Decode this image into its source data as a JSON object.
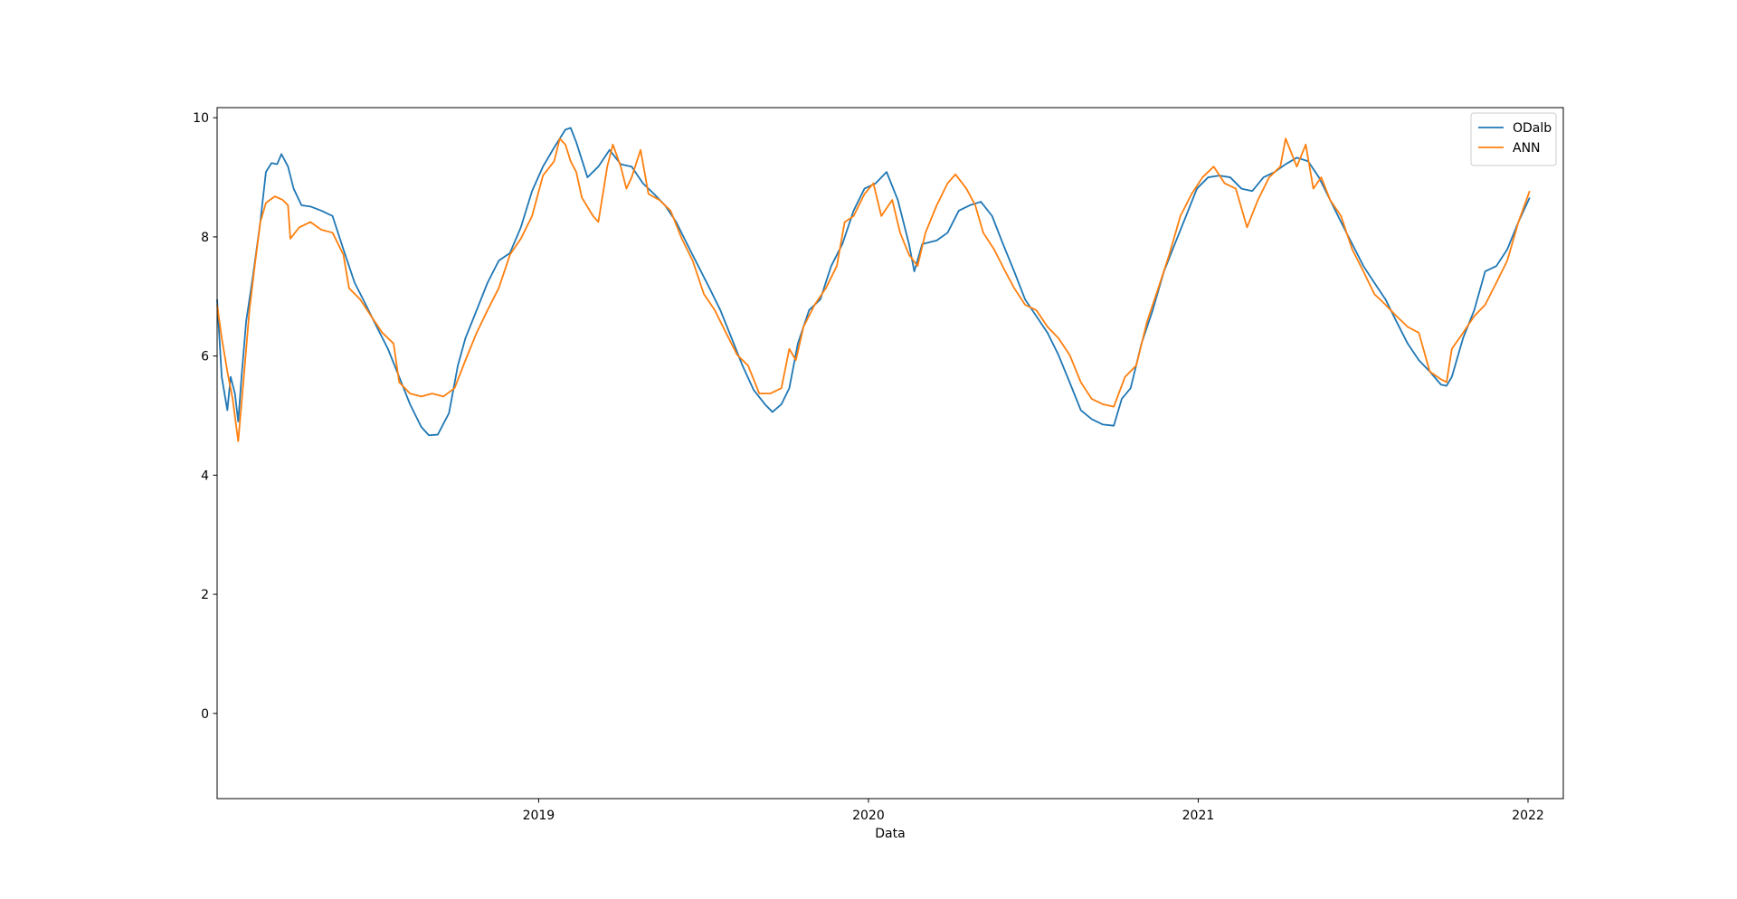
{
  "chart_data": {
    "type": "line",
    "xlabel": "Data",
    "xlim": [
      2018.025,
      2022.107
    ],
    "xticks": [
      2019,
      2020,
      2021,
      2022
    ],
    "ylim": [
      -1.43,
      10.17
    ],
    "yticks": [
      0,
      2,
      4,
      6,
      8,
      10
    ],
    "grid": false,
    "legend": "upper right",
    "series": [
      {
        "name": "ODalb",
        "color": "#1f77b4",
        "x": [
          2018.025,
          2018.039,
          2018.056,
          2018.066,
          2018.079,
          2018.089,
          2018.099,
          2018.113,
          2018.133,
          2018.156,
          2018.173,
          2018.19,
          2018.207,
          2018.22,
          2018.24,
          2018.257,
          2018.281,
          2018.308,
          2018.341,
          2018.375,
          2018.408,
          2018.442,
          2018.476,
          2018.509,
          2018.543,
          2018.577,
          2018.61,
          2018.644,
          2018.667,
          2018.694,
          2018.728,
          2018.755,
          2018.778,
          2018.812,
          2018.845,
          2018.879,
          2018.913,
          2018.946,
          2018.98,
          2019.013,
          2019.047,
          2019.081,
          2019.097,
          2019.114,
          2019.148,
          2019.181,
          2019.215,
          2019.249,
          2019.282,
          2019.316,
          2019.35,
          2019.383,
          2019.417,
          2019.45,
          2019.484,
          2019.518,
          2019.551,
          2019.585,
          2019.618,
          2019.652,
          2019.686,
          2019.709,
          2019.736,
          2019.76,
          2019.786,
          2019.82,
          2019.854,
          2019.887,
          2019.921,
          2019.955,
          2019.988,
          2020.022,
          2020.055,
          2020.089,
          2020.123,
          2020.139,
          2020.163,
          2020.207,
          2020.24,
          2020.274,
          2020.307,
          2020.341,
          2020.375,
          2020.408,
          2020.442,
          2020.475,
          2020.509,
          2020.543,
          2020.576,
          2020.61,
          2020.644,
          2020.677,
          2020.711,
          2020.744,
          2020.768,
          2020.795,
          2020.828,
          2020.862,
          2020.896,
          2020.929,
          2020.963,
          2020.996,
          2021.03,
          2021.064,
          2021.097,
          2021.131,
          2021.164,
          2021.198,
          2021.232,
          2021.265,
          2021.299,
          2021.333,
          2021.366,
          2021.4,
          2021.433,
          2021.467,
          2021.501,
          2021.534,
          2021.568,
          2021.601,
          2021.635,
          2021.669,
          2021.702,
          2021.736,
          2021.753,
          2021.769,
          2021.803,
          2021.837,
          2021.87,
          2021.904,
          2021.937,
          2021.971,
          2022.005
        ],
        "values": [
          6.95,
          5.65,
          5.09,
          5.65,
          5.37,
          4.9,
          5.65,
          6.58,
          7.32,
          8.25,
          9.09,
          9.24,
          9.22,
          9.39,
          9.18,
          8.81,
          8.53,
          8.51,
          8.44,
          8.35,
          7.79,
          7.23,
          6.86,
          6.49,
          6.12,
          5.65,
          5.19,
          4.81,
          4.67,
          4.68,
          5.04,
          5.84,
          6.3,
          6.77,
          7.23,
          7.6,
          7.73,
          8.16,
          8.77,
          9.18,
          9.5,
          9.8,
          9.83,
          9.59,
          9.0,
          9.18,
          9.46,
          9.22,
          9.18,
          8.9,
          8.72,
          8.53,
          8.25,
          7.88,
          7.51,
          7.14,
          6.77,
          6.3,
          5.84,
          5.43,
          5.19,
          5.06,
          5.19,
          5.46,
          6.21,
          6.77,
          6.95,
          7.51,
          7.88,
          8.44,
          8.81,
          8.9,
          9.09,
          8.62,
          7.88,
          7.42,
          7.88,
          7.94,
          8.07,
          8.44,
          8.53,
          8.59,
          8.35,
          7.88,
          7.42,
          6.95,
          6.67,
          6.39,
          6.02,
          5.56,
          5.09,
          4.94,
          4.85,
          4.83,
          5.28,
          5.46,
          6.21,
          6.77,
          7.42,
          7.88,
          8.35,
          8.81,
          9.0,
          9.03,
          9.0,
          8.81,
          8.77,
          9.0,
          9.09,
          9.22,
          9.33,
          9.27,
          9.0,
          8.62,
          8.25,
          7.88,
          7.51,
          7.23,
          6.95,
          6.58,
          6.21,
          5.93,
          5.74,
          5.52,
          5.5,
          5.65,
          6.3,
          6.77,
          7.42,
          7.51,
          7.79,
          8.25,
          8.66
        ]
      },
      {
        "name": "ANN",
        "color": "#ff7f0e",
        "x": [
          2018.025,
          2018.039,
          2018.056,
          2018.072,
          2018.089,
          2018.106,
          2018.123,
          2018.139,
          2018.156,
          2018.173,
          2018.2,
          2018.224,
          2018.24,
          2018.247,
          2018.274,
          2018.308,
          2018.341,
          2018.375,
          2018.408,
          2018.425,
          2018.459,
          2018.492,
          2018.526,
          2018.56,
          2018.577,
          2018.61,
          2018.644,
          2018.677,
          2018.711,
          2018.745,
          2018.778,
          2018.812,
          2018.845,
          2018.879,
          2018.913,
          2018.946,
          2018.98,
          2019.013,
          2019.047,
          2019.064,
          2019.081,
          2019.097,
          2019.114,
          2019.131,
          2019.165,
          2019.181,
          2019.208,
          2019.225,
          2019.249,
          2019.266,
          2019.282,
          2019.309,
          2019.333,
          2019.366,
          2019.4,
          2019.434,
          2019.467,
          2019.501,
          2019.534,
          2019.568,
          2019.602,
          2019.635,
          2019.669,
          2019.702,
          2019.736,
          2019.76,
          2019.78,
          2019.803,
          2019.837,
          2019.871,
          2019.904,
          2019.928,
          2019.955,
          2019.988,
          2020.015,
          2020.039,
          2020.072,
          2020.096,
          2020.123,
          2020.149,
          2020.173,
          2020.207,
          2020.24,
          2020.264,
          2020.297,
          2020.324,
          2020.348,
          2020.381,
          2020.415,
          2020.442,
          2020.475,
          2020.509,
          2020.543,
          2020.576,
          2020.61,
          2020.644,
          2020.677,
          2020.711,
          2020.744,
          2020.778,
          2020.812,
          2020.845,
          2020.879,
          2020.912,
          2020.946,
          2020.98,
          2021.013,
          2021.047,
          2021.08,
          2021.114,
          2021.148,
          2021.181,
          2021.215,
          2021.249,
          2021.265,
          2021.299,
          2021.326,
          2021.349,
          2021.373,
          2021.4,
          2021.433,
          2021.467,
          2021.501,
          2021.534,
          2021.568,
          2021.601,
          2021.635,
          2021.669,
          2021.702,
          2021.736,
          2021.753,
          2021.769,
          2021.803,
          2021.837,
          2021.87,
          2021.904,
          2021.937,
          2021.971,
          2022.005
        ],
        "values": [
          6.86,
          6.3,
          5.74,
          5.28,
          4.57,
          5.65,
          6.77,
          7.51,
          8.25,
          8.57,
          8.68,
          8.62,
          8.53,
          7.97,
          8.16,
          8.25,
          8.12,
          8.07,
          7.7,
          7.14,
          6.95,
          6.67,
          6.39,
          6.21,
          5.56,
          5.37,
          5.32,
          5.37,
          5.32,
          5.46,
          5.93,
          6.39,
          6.77,
          7.14,
          7.7,
          7.97,
          8.35,
          9.03,
          9.27,
          9.65,
          9.55,
          9.27,
          9.09,
          8.66,
          8.35,
          8.25,
          9.18,
          9.55,
          9.18,
          8.81,
          9.0,
          9.46,
          8.72,
          8.62,
          8.44,
          7.97,
          7.6,
          7.04,
          6.77,
          6.39,
          6.02,
          5.84,
          5.37,
          5.37,
          5.46,
          6.12,
          5.93,
          6.49,
          6.86,
          7.14,
          7.51,
          8.25,
          8.35,
          8.72,
          8.9,
          8.35,
          8.62,
          8.07,
          7.7,
          7.51,
          8.07,
          8.53,
          8.9,
          9.05,
          8.81,
          8.53,
          8.07,
          7.79,
          7.42,
          7.14,
          6.86,
          6.77,
          6.49,
          6.3,
          6.02,
          5.56,
          5.28,
          5.19,
          5.15,
          5.65,
          5.84,
          6.58,
          7.14,
          7.7,
          8.35,
          8.72,
          9.0,
          9.18,
          8.9,
          8.81,
          8.16,
          8.62,
          9.0,
          9.18,
          9.65,
          9.18,
          9.55,
          8.81,
          9.0,
          8.62,
          8.35,
          7.79,
          7.42,
          7.04,
          6.86,
          6.67,
          6.49,
          6.39,
          5.74,
          5.61,
          5.56,
          6.12,
          6.39,
          6.67,
          6.86,
          7.23,
          7.6,
          8.25,
          8.77
        ]
      }
    ]
  }
}
